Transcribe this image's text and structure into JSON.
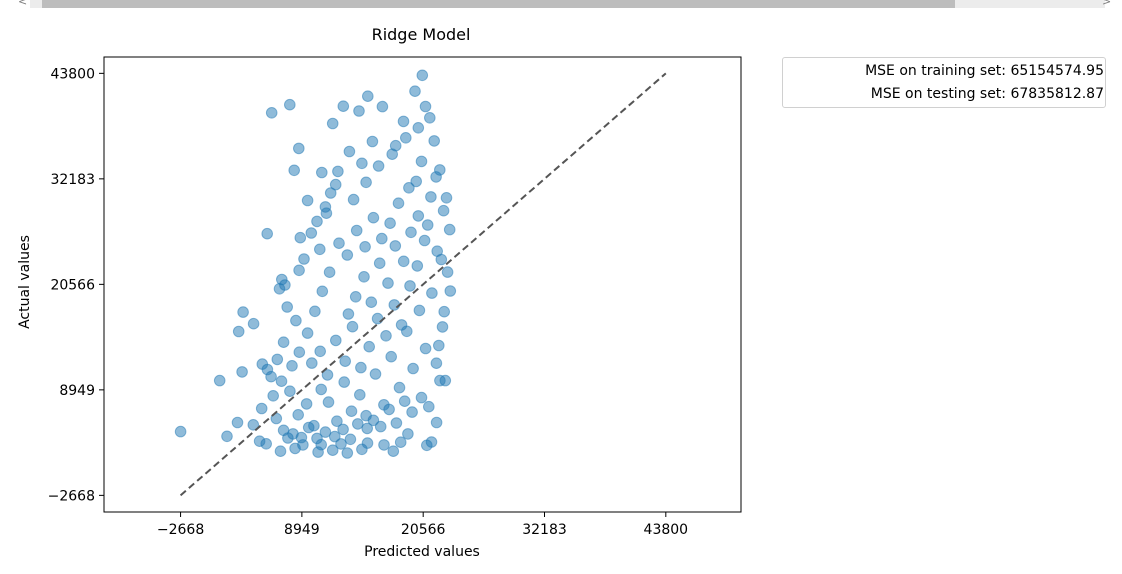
{
  "window": {
    "scroll_left_glyph": "<",
    "scroll_right_glyph": ">"
  },
  "colors": {
    "points": "#1f77b4",
    "diagonal": "#555555"
  },
  "chart_data": {
    "type": "scatter",
    "title": "Ridge Model",
    "xlabel": "Predicted values",
    "ylabel": "Actual values",
    "xlim": [
      -10000,
      51000
    ],
    "ylim": [
      -4500,
      45600
    ],
    "xticks": [
      -2668,
      8949,
      20566,
      32183,
      43800
    ],
    "yticks": [
      -2668,
      8949,
      20566,
      32183,
      43800
    ],
    "xtick_labels": [
      "−2668",
      "8949",
      "20566",
      "32183",
      "43800"
    ],
    "ytick_labels": [
      "−2668",
      "8949",
      "20566",
      "32183",
      "43800"
    ],
    "point_alpha": 0.5,
    "reference_line": {
      "style": "dashed",
      "x": [
        -2668,
        43800
      ],
      "y": [
        -2668,
        43800
      ]
    },
    "legend": {
      "placement": "outside upper right",
      "entries": [
        "MSE on training set: 65154574.95",
        "MSE on testing set: 67835812.87"
      ]
    },
    "points": [
      [
        -2668,
        4350
      ],
      [
        1080,
        9970
      ],
      [
        1780,
        3830
      ],
      [
        2780,
        5360
      ],
      [
        3220,
        10930
      ],
      [
        3320,
        17510
      ],
      [
        2900,
        15370
      ],
      [
        4330,
        16230
      ],
      [
        5160,
        11790
      ],
      [
        5650,
        11190
      ],
      [
        5630,
        26140
      ],
      [
        6810,
        20080
      ],
      [
        7030,
        21100
      ],
      [
        7320,
        20490
      ],
      [
        6060,
        39460
      ],
      [
        7790,
        40350
      ],
      [
        8210,
        33120
      ],
      [
        7540,
        18070
      ],
      [
        8380,
        16580
      ],
      [
        8680,
        22110
      ],
      [
        9150,
        23360
      ],
      [
        9850,
        26220
      ],
      [
        10670,
        24430
      ],
      [
        11300,
        28400
      ],
      [
        11710,
        30620
      ],
      [
        12190,
        31550
      ],
      [
        10860,
        32880
      ],
      [
        8650,
        35540
      ],
      [
        11900,
        38280
      ],
      [
        12920,
        40180
      ],
      [
        14420,
        39650
      ],
      [
        15260,
        41280
      ],
      [
        16660,
        40140
      ],
      [
        17930,
        35830
      ],
      [
        18680,
        38510
      ],
      [
        19780,
        41830
      ],
      [
        20480,
        43590
      ],
      [
        20790,
        40150
      ],
      [
        21620,
        36360
      ],
      [
        22160,
        33170
      ],
      [
        22520,
        28680
      ],
      [
        21910,
        24220
      ],
      [
        22900,
        21910
      ],
      [
        23160,
        19830
      ],
      [
        22580,
        17550
      ],
      [
        22420,
        15880
      ],
      [
        22060,
        13830
      ],
      [
        21830,
        11880
      ],
      [
        22170,
        9970
      ],
      [
        22680,
        9970
      ],
      [
        21850,
        5360
      ],
      [
        21360,
        3210
      ],
      [
        20910,
        2840
      ],
      [
        18410,
        3190
      ],
      [
        16810,
        2890
      ],
      [
        15230,
        3090
      ],
      [
        12700,
        3000
      ],
      [
        10800,
        2910
      ],
      [
        9050,
        2890
      ],
      [
        7610,
        3650
      ],
      [
        5530,
        3010
      ],
      [
        4900,
        3300
      ],
      [
        4300,
        5100
      ],
      [
        5100,
        6900
      ],
      [
        6200,
        8300
      ],
      [
        7000,
        9900
      ],
      [
        7800,
        8800
      ],
      [
        8600,
        6200
      ],
      [
        9400,
        7400
      ],
      [
        10100,
        5000
      ],
      [
        10800,
        9000
      ],
      [
        11500,
        7600
      ],
      [
        12300,
        5500
      ],
      [
        13000,
        9800
      ],
      [
        13700,
        6600
      ],
      [
        14500,
        8400
      ],
      [
        15200,
        4700
      ],
      [
        16000,
        10700
      ],
      [
        16800,
        7300
      ],
      [
        17500,
        12600
      ],
      [
        18300,
        9200
      ],
      [
        19000,
        15400
      ],
      [
        19600,
        11300
      ],
      [
        20200,
        17700
      ],
      [
        20800,
        13500
      ],
      [
        21400,
        19600
      ],
      [
        6500,
        5800
      ],
      [
        7200,
        4500
      ],
      [
        8100,
        4100
      ],
      [
        8900,
        3700
      ],
      [
        9600,
        4800
      ],
      [
        10400,
        3600
      ],
      [
        11200,
        4300
      ],
      [
        12100,
        3800
      ],
      [
        12900,
        4600
      ],
      [
        13600,
        3500
      ],
      [
        14300,
        5200
      ],
      [
        15100,
        6100
      ],
      [
        15800,
        5600
      ],
      [
        16500,
        4900
      ],
      [
        17300,
        6800
      ],
      [
        18000,
        5300
      ],
      [
        18800,
        7700
      ],
      [
        19500,
        6500
      ],
      [
        9900,
        11900
      ],
      [
        10700,
        13200
      ],
      [
        11400,
        10600
      ],
      [
        12200,
        14400
      ],
      [
        13100,
        12100
      ],
      [
        13800,
        15900
      ],
      [
        14600,
        11400
      ],
      [
        15400,
        13700
      ],
      [
        16200,
        16800
      ],
      [
        17000,
        14900
      ],
      [
        17800,
        18300
      ],
      [
        18500,
        16100
      ],
      [
        19300,
        20400
      ],
      [
        20000,
        22600
      ],
      [
        13400,
        17300
      ],
      [
        14100,
        19200
      ],
      [
        14900,
        21400
      ],
      [
        15600,
        18600
      ],
      [
        16400,
        22900
      ],
      [
        17200,
        20700
      ],
      [
        17900,
        24800
      ],
      [
        18700,
        23100
      ],
      [
        19400,
        26300
      ],
      [
        20100,
        28100
      ],
      [
        20700,
        25400
      ],
      [
        21300,
        30200
      ],
      [
        21800,
        32400
      ],
      [
        20400,
        34100
      ],
      [
        19200,
        31200
      ],
      [
        18200,
        29500
      ],
      [
        17400,
        27300
      ],
      [
        16600,
        25600
      ],
      [
        15800,
        27900
      ],
      [
        15000,
        24700
      ],
      [
        14200,
        26500
      ],
      [
        13300,
        23800
      ],
      [
        12500,
        25100
      ],
      [
        11600,
        21900
      ],
      [
        10900,
        19800
      ],
      [
        10200,
        17600
      ],
      [
        9500,
        15200
      ],
      [
        8700,
        13100
      ],
      [
        8000,
        11600
      ],
      [
        7200,
        14200
      ],
      [
        6600,
        12300
      ],
      [
        6000,
        10400
      ],
      [
        13900,
        29900
      ],
      [
        15100,
        31800
      ],
      [
        16300,
        33600
      ],
      [
        17600,
        34900
      ],
      [
        18900,
        36700
      ],
      [
        20100,
        37800
      ],
      [
        21200,
        38900
      ],
      [
        15700,
        36300
      ],
      [
        14700,
        33900
      ],
      [
        13500,
        35200
      ],
      [
        12400,
        33000
      ],
      [
        11200,
        29100
      ],
      [
        10400,
        27500
      ],
      [
        9500,
        29800
      ],
      [
        8800,
        25700
      ],
      [
        19900,
        31900
      ],
      [
        21000,
        27100
      ],
      [
        22300,
        23300
      ],
      [
        23100,
        26600
      ],
      [
        22800,
        30100
      ],
      [
        10500,
        2100
      ],
      [
        11900,
        2300
      ],
      [
        13300,
        2000
      ],
      [
        14700,
        2400
      ],
      [
        6900,
        2200
      ],
      [
        8300,
        2500
      ],
      [
        17700,
        2200
      ],
      [
        19100,
        4100
      ],
      [
        20400,
        8100
      ],
      [
        21100,
        7100
      ]
    ]
  }
}
